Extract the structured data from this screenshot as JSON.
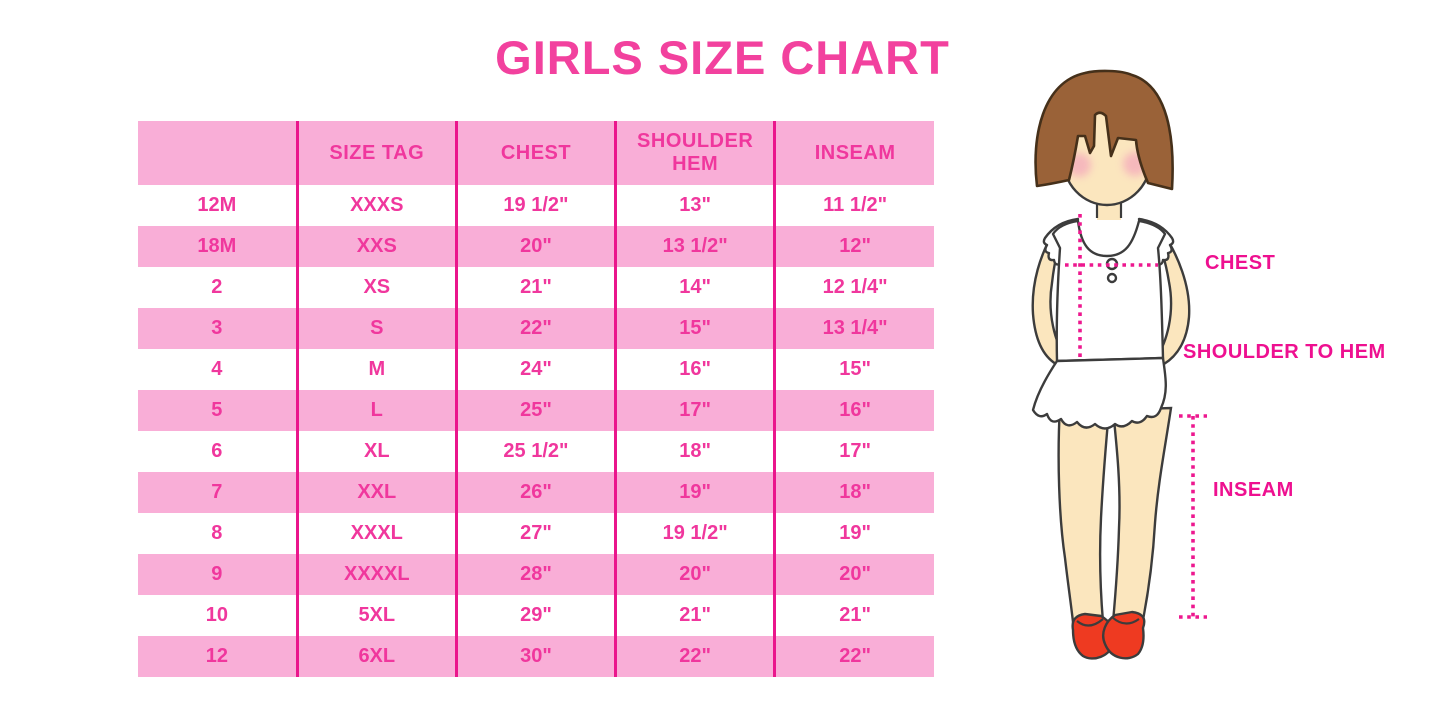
{
  "title": "GIRLS SIZE CHART",
  "colors": {
    "title_pink": "#F2419E",
    "band_pink": "#F9AED7",
    "text_pink": "#F0379D",
    "line_pink": "#EA168C",
    "label_pink": "#EE1090",
    "dot_pink": "#ED188F",
    "hair_brown": "#9A6238",
    "hair_outline": "#45301A",
    "outline": "#3C3C3C",
    "skin": "#FBE6BE",
    "cheek": "#F4A9BC",
    "shoe_red": "#EE3A21"
  },
  "table": {
    "headers": [
      "",
      "SIZE TAG",
      "CHEST",
      "SHOULDER HEM",
      "INSEAM"
    ],
    "rows": [
      [
        "12M",
        "XXXS",
        "19 1/2\"",
        "13\"",
        "11 1/2\""
      ],
      [
        "18M",
        "XXS",
        "20\"",
        "13 1/2\"",
        "12\""
      ],
      [
        "2",
        "XS",
        "21\"",
        "14\"",
        "12 1/4\""
      ],
      [
        "3",
        "S",
        "22\"",
        "15\"",
        "13 1/4\""
      ],
      [
        "4",
        "M",
        "24\"",
        "16\"",
        "15\""
      ],
      [
        "5",
        "L",
        "25\"",
        "17\"",
        "16\""
      ],
      [
        "6",
        "XL",
        "25 1/2\"",
        "18\"",
        "17\""
      ],
      [
        "7",
        "XXL",
        "26\"",
        "19\"",
        "18\""
      ],
      [
        "8",
        "XXXL",
        "27\"",
        "19 1/2\"",
        "19\""
      ],
      [
        "9",
        "XXXXL",
        "28\"",
        "20\"",
        "20\""
      ],
      [
        "10",
        "5XL",
        "29\"",
        "21\"",
        "21\""
      ],
      [
        "12",
        "6XL",
        "30\"",
        "22\"",
        "22\""
      ]
    ]
  },
  "figure": {
    "labels": {
      "chest": "CHEST",
      "shoulder_to_hem": "SHOULDER TO HEM",
      "inseam": "INSEAM"
    }
  }
}
